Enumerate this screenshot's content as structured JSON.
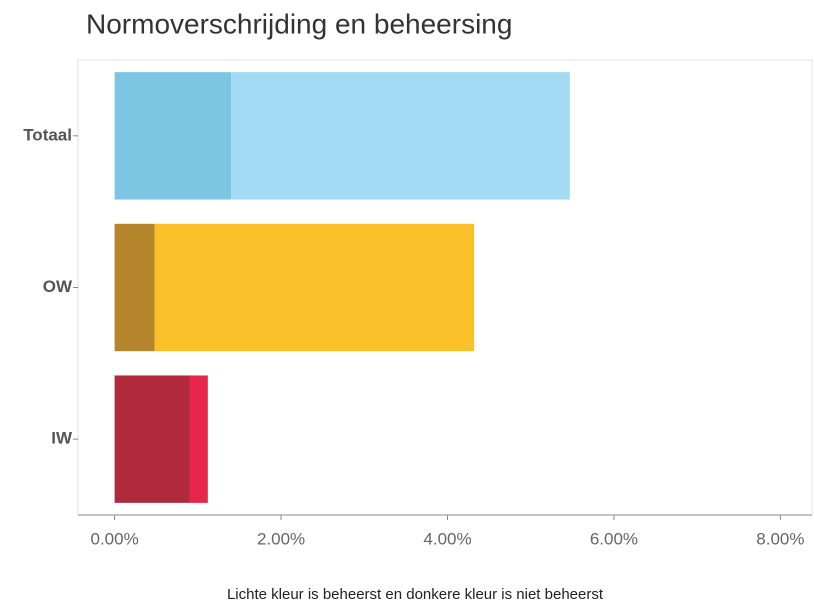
{
  "chart_data": {
    "type": "bar",
    "orientation": "horizontal",
    "stacked": true,
    "title": "Normoverschrijding en beheersing",
    "caption": "Lichte kleur is beheerst en donkere kleur is niet beheerst",
    "categories": [
      "Totaal",
      "OW",
      "IW"
    ],
    "series": [
      {
        "colors": [
          "#7cc6e4",
          "#b5852c",
          "#b12a3c"
        ],
        "values": [
          1.4,
          0.48,
          0.9
        ]
      },
      {
        "colors": [
          "#a2dbf3",
          "#f9c02a",
          "#e6264a"
        ],
        "values": [
          4.07,
          3.84,
          0.22
        ]
      }
    ],
    "xlim": [
      -0.44,
      8.38
    ],
    "xticks": [
      {
        "value": 0,
        "label": "0.00%"
      },
      {
        "value": 2,
        "label": "2.00%"
      },
      {
        "value": 4,
        "label": "4.00%"
      },
      {
        "value": 6,
        "label": "6.00%"
      },
      {
        "value": 8,
        "label": "8.00%"
      }
    ],
    "grid": false
  }
}
